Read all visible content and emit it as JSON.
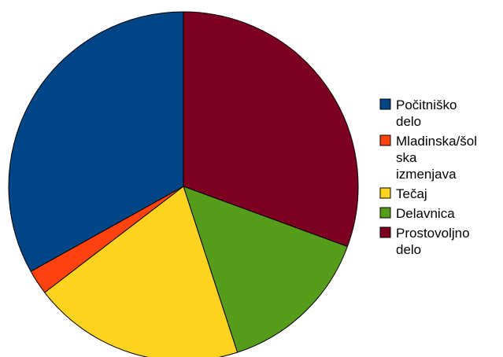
{
  "chart_data": {
    "type": "pie",
    "title": "",
    "start_angle_deg": 0,
    "direction": "clockwise",
    "legend_position": "right",
    "slices": [
      {
        "label": [
          "Prostovoljno",
          "delo"
        ],
        "value": 30.6,
        "color": "#7E0021"
      },
      {
        "label": [
          "Delavnica"
        ],
        "value": 14.4,
        "color": "#579D1C"
      },
      {
        "label": [
          "Tečaj"
        ],
        "value": 19.6,
        "color": "#FFD320"
      },
      {
        "label": [
          "Mladinska/šol",
          "ska",
          "izmenjava"
        ],
        "value": 2.3,
        "color": "#FF420E"
      },
      {
        "label": [
          "Počitniško",
          "delo"
        ],
        "value": 33.1,
        "color": "#004586"
      }
    ],
    "legend_order": [
      4,
      3,
      2,
      1,
      0
    ]
  }
}
